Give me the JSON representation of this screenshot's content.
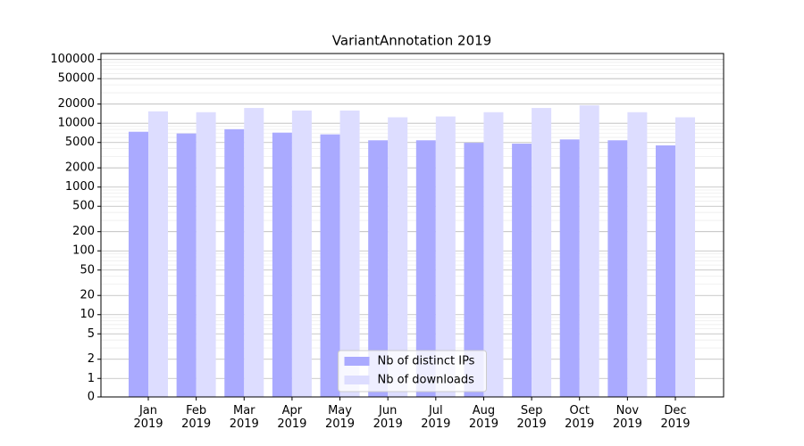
{
  "chart_data": {
    "type": "bar",
    "title": "VariantAnnotation 2019",
    "categories": [
      "Jan\n2019",
      "Feb\n2019",
      "Mar\n2019",
      "Apr\n2019",
      "May\n2019",
      "Jun\n2019",
      "Jul\n2019",
      "Aug\n2019",
      "Sep\n2019",
      "Oct\n2019",
      "Nov\n2019",
      "Dec\n2019"
    ],
    "series": [
      {
        "name": "Nb of distinct IPs",
        "color": "#aaaaff",
        "values": [
          7360,
          6920,
          8070,
          7130,
          6700,
          5410,
          5410,
          4940,
          4790,
          5580,
          5410,
          4500
        ]
      },
      {
        "name": "Nb of downloads",
        "color": "#ddddff",
        "values": [
          15370,
          14900,
          17370,
          15850,
          15850,
          12400,
          12790,
          14900,
          17370,
          19060,
          14900,
          12400
        ]
      }
    ],
    "yscale": "symlog",
    "ylim": [
      0,
      124000
    ],
    "yticks": [
      0,
      1,
      2,
      5,
      10,
      20,
      50,
      100,
      200,
      500,
      1000,
      2000,
      5000,
      10000,
      20000,
      50000,
      100000
    ],
    "grid": true,
    "legend": "lower center"
  }
}
